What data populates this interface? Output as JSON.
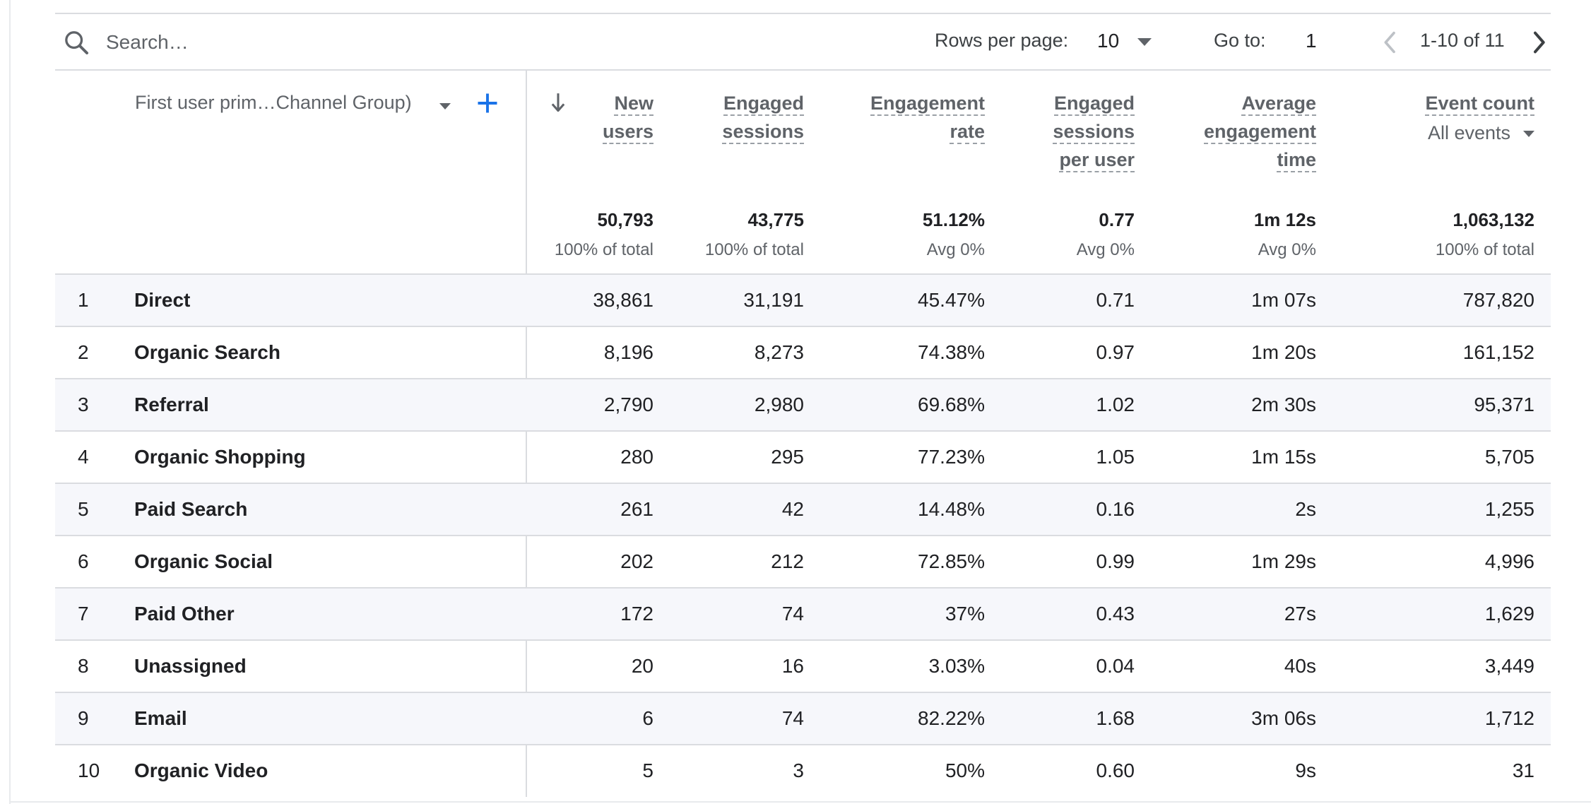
{
  "toolbar": {
    "search_placeholder": "Search…",
    "rows_per_page_label": "Rows per page:",
    "rows_per_page_value": "10",
    "goto_label": "Go to:",
    "goto_value": "1",
    "page_range": "1-10 of 11"
  },
  "dimension": {
    "label": "First user prim…Channel Group)"
  },
  "columns": [
    {
      "lines": [
        "New",
        "users"
      ]
    },
    {
      "lines": [
        "Engaged",
        "sessions"
      ]
    },
    {
      "lines": [
        "Engagement",
        "rate"
      ]
    },
    {
      "lines": [
        "Engaged",
        "sessions",
        "per user"
      ]
    },
    {
      "lines": [
        "Average",
        "engagement",
        "time"
      ]
    },
    {
      "lines": [
        "Event count"
      ],
      "select": "All events"
    }
  ],
  "totals": [
    {
      "value": "50,793",
      "sub": "100% of total"
    },
    {
      "value": "43,775",
      "sub": "100% of total"
    },
    {
      "value": "51.12%",
      "sub": "Avg 0%"
    },
    {
      "value": "0.77",
      "sub": "Avg 0%"
    },
    {
      "value": "1m 12s",
      "sub": "Avg 0%"
    },
    {
      "value": "1,063,132",
      "sub": "100% of total"
    }
  ],
  "rows": [
    {
      "index": "1",
      "name": "Direct",
      "values": [
        "38,861",
        "31,191",
        "45.47%",
        "0.71",
        "1m 07s",
        "787,820"
      ]
    },
    {
      "index": "2",
      "name": "Organic Search",
      "values": [
        "8,196",
        "8,273",
        "74.38%",
        "0.97",
        "1m 20s",
        "161,152"
      ]
    },
    {
      "index": "3",
      "name": "Referral",
      "values": [
        "2,790",
        "2,980",
        "69.68%",
        "1.02",
        "2m 30s",
        "95,371"
      ]
    },
    {
      "index": "4",
      "name": "Organic Shopping",
      "values": [
        "280",
        "295",
        "77.23%",
        "1.05",
        "1m 15s",
        "5,705"
      ]
    },
    {
      "index": "5",
      "name": "Paid Search",
      "values": [
        "261",
        "42",
        "14.48%",
        "0.16",
        "2s",
        "1,255"
      ]
    },
    {
      "index": "6",
      "name": "Organic Social",
      "values": [
        "202",
        "212",
        "72.85%",
        "0.99",
        "1m 29s",
        "4,996"
      ]
    },
    {
      "index": "7",
      "name": "Paid Other",
      "values": [
        "172",
        "74",
        "37%",
        "0.43",
        "27s",
        "1,629"
      ]
    },
    {
      "index": "8",
      "name": "Unassigned",
      "values": [
        "20",
        "16",
        "3.03%",
        "0.04",
        "40s",
        "3,449"
      ]
    },
    {
      "index": "9",
      "name": "Email",
      "values": [
        "6",
        "74",
        "82.22%",
        "1.68",
        "3m 06s",
        "1,712"
      ]
    },
    {
      "index": "10",
      "name": "Organic Video",
      "values": [
        "5",
        "3",
        "50%",
        "0.60",
        "9s",
        "31"
      ]
    }
  ],
  "colors": {
    "accent": "#1a73e8",
    "text": "#202124",
    "muted": "#5f6368",
    "row_stripe": "#f6f7fb",
    "divider": "#dadce0"
  }
}
